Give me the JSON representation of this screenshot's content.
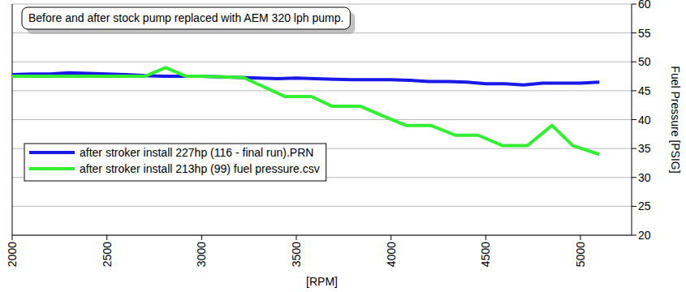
{
  "chart_data": {
    "type": "line",
    "title": "Before and after stock pump replaced with AEM 320 lph pump.",
    "x_label": "[RPM]",
    "y_label": "Fuel Pressure [PSIG]",
    "xlim": [
      2000,
      5270
    ],
    "xticks": [
      2000,
      2500,
      3000,
      3500,
      4000,
      4500,
      5000
    ],
    "ylim": [
      20,
      60
    ],
    "yticks": [
      20,
      25,
      30,
      35,
      40,
      45,
      50,
      55,
      60
    ],
    "grid": true,
    "legend": "lower left",
    "series": [
      {
        "name": "after stroker install 227hp (116 - final run).PRN",
        "color": "#1a1ae6",
        "x": [
          2000,
          2100,
          2200,
          2300,
          2400,
          2500,
          2600,
          2700,
          2800,
          2900,
          3000,
          3100,
          3200,
          3300,
          3400,
          3500,
          3600,
          3700,
          3800,
          3900,
          4000,
          4100,
          4200,
          4300,
          4400,
          4500,
          4600,
          4700,
          4800,
          4900,
          5000,
          5100
        ],
        "values": [
          47.8,
          47.9,
          47.9,
          48.1,
          48.0,
          47.9,
          47.8,
          47.6,
          47.5,
          47.5,
          47.5,
          47.4,
          47.3,
          47.2,
          47.1,
          47.2,
          47.1,
          47.0,
          46.9,
          46.9,
          46.9,
          46.8,
          46.6,
          46.6,
          46.5,
          46.2,
          46.2,
          46.0,
          46.3,
          46.3,
          46.3,
          46.5
        ]
      },
      {
        "name": "after stroker install 213hp (99) fuel pressure.csv",
        "color": "#33ee33",
        "x": [
          2000,
          2200,
          2400,
          2600,
          2700,
          2810,
          2920,
          3000,
          3220,
          3440,
          3580,
          3690,
          3840,
          3990,
          4080,
          4210,
          4340,
          4460,
          4590,
          4720,
          4850,
          4960,
          5100
        ],
        "values": [
          47.5,
          47.5,
          47.5,
          47.5,
          47.5,
          49.0,
          47.5,
          47.5,
          47.3,
          44.0,
          44.0,
          42.3,
          42.3,
          40.2,
          39.0,
          39.0,
          37.3,
          37.3,
          35.5,
          35.5,
          39.0,
          35.5,
          34.0
        ]
      }
    ]
  }
}
